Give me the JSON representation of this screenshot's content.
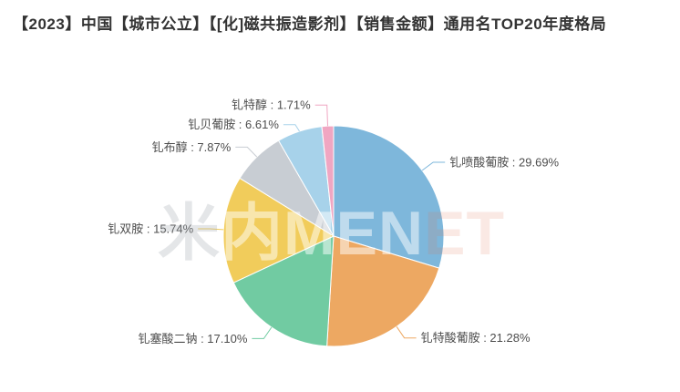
{
  "title": "【2023】中国【城市公立】【[化]磁共振造影剂】【销售金额】通用名TOP20年度格局",
  "watermark": "米内MENET",
  "chart_data": {
    "type": "pie",
    "title": "【2023】中国【城市公立】【[化]磁共振造影剂】【销售金额】通用名TOP20年度格局",
    "unit": "%",
    "start_angle": "top (12 o'clock)",
    "direction": "clockwise",
    "legend_position": "none",
    "label_format": "{name} : {value}%",
    "slices": [
      {
        "label": "钆喷酸葡胺",
        "value": 29.69,
        "display": "29.69",
        "color": "#7EB7DB"
      },
      {
        "label": "钆特酸葡胺",
        "value": 21.28,
        "display": "21.28",
        "color": "#EDA862"
      },
      {
        "label": "钆塞酸二钠",
        "value": 17.1,
        "display": "17.10",
        "color": "#71CBA2"
      },
      {
        "label": "钆双胺",
        "value": 15.74,
        "display": "15.74",
        "color": "#F1CC5B"
      },
      {
        "label": "钆布醇",
        "value": 7.87,
        "display": "7.87",
        "color": "#C8CDD3"
      },
      {
        "label": "钆贝葡胺",
        "value": 6.61,
        "display": "6.61",
        "color": "#A7D2EA"
      },
      {
        "label": "钆特醇",
        "value": 1.71,
        "display": "1.71",
        "color": "#F0A6C2"
      }
    ]
  }
}
